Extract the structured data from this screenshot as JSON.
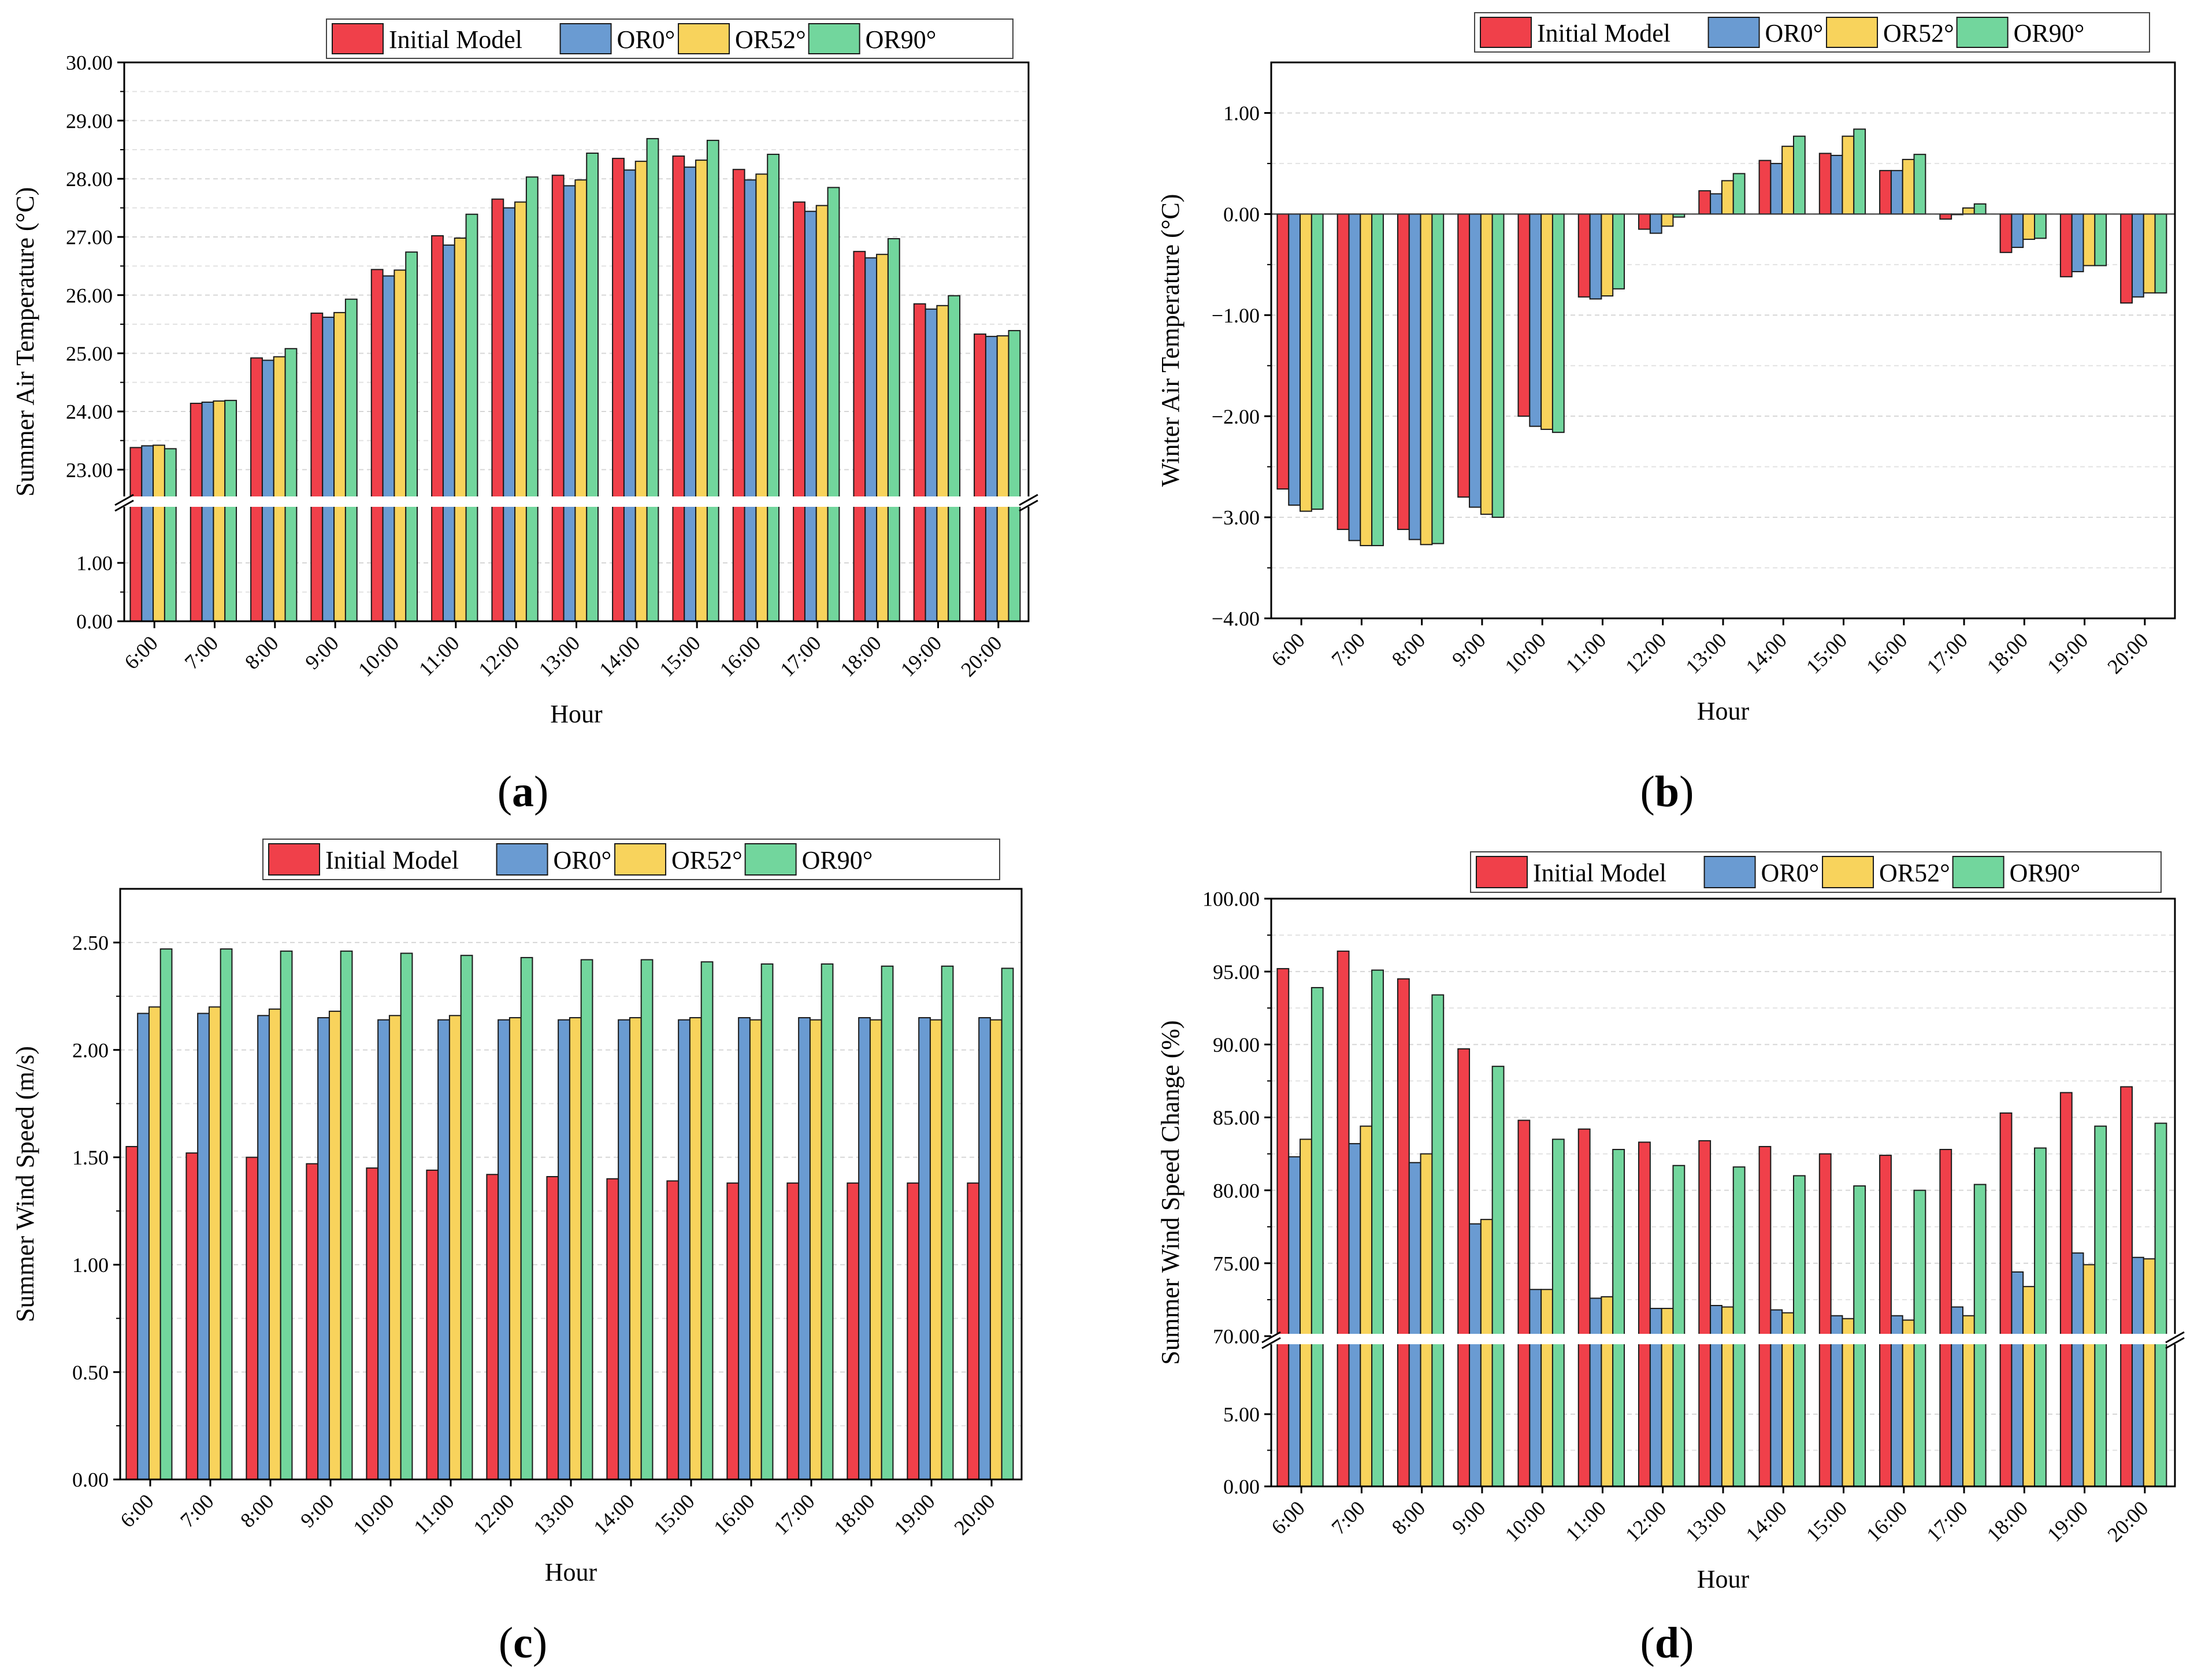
{
  "figure": {
    "panel_labels": [
      {
        "letter": "a",
        "open": "(",
        "close": ")"
      },
      {
        "letter": "b",
        "open": "(",
        "close": ")"
      },
      {
        "letter": "c",
        "open": "(",
        "close": ")"
      },
      {
        "letter": "d",
        "open": "(",
        "close": ")"
      }
    ]
  },
  "colors": {
    "initial": "#F0404A",
    "or0": "#6A9BD2",
    "or52": "#F8D35C",
    "or90": "#72D69D"
  },
  "chart_data": [
    {
      "id": "a",
      "type": "bar",
      "ylabel": "Summer Air Temperature (°C)",
      "xlabel": "Hour",
      "categories": [
        "6:00",
        "7:00",
        "8:00",
        "9:00",
        "10:00",
        "11:00",
        "12:00",
        "13:00",
        "14:00",
        "15:00",
        "16:00",
        "17:00",
        "18:00",
        "19:00",
        "20:00"
      ],
      "legend": [
        "Initial Model",
        "OR0°",
        "OR52°",
        "OR90°"
      ],
      "legend_position": "top",
      "axis_break": {
        "lower": [
          0,
          2
        ],
        "upper": [
          22.5,
          30
        ]
      },
      "lower_ticks": [
        "0.00",
        "1.00"
      ],
      "upper_ticks": [
        "23.00",
        "24.00",
        "25.00",
        "26.00",
        "27.00",
        "28.00",
        "29.00",
        "30.00"
      ],
      "series": [
        {
          "name": "Initial Model",
          "values": [
            23.38,
            24.14,
            24.92,
            25.69,
            26.44,
            27.02,
            27.65,
            28.06,
            28.35,
            28.39,
            28.16,
            27.6,
            26.75,
            25.85,
            25.33
          ]
        },
        {
          "name": "OR0°",
          "values": [
            23.41,
            24.16,
            24.88,
            25.62,
            26.33,
            26.86,
            27.5,
            27.88,
            28.15,
            28.2,
            27.98,
            27.44,
            26.64,
            25.76,
            25.29
          ]
        },
        {
          "name": "OR52°",
          "values": [
            23.42,
            24.18,
            24.94,
            25.7,
            26.43,
            26.98,
            27.6,
            27.98,
            28.3,
            28.32,
            28.08,
            27.54,
            26.7,
            25.82,
            25.3
          ]
        },
        {
          "name": "OR90°",
          "values": [
            23.36,
            24.19,
            25.08,
            25.93,
            26.74,
            27.39,
            28.03,
            28.44,
            28.69,
            28.66,
            28.42,
            27.85,
            26.97,
            25.99,
            25.39
          ]
        }
      ]
    },
    {
      "id": "b",
      "type": "bar",
      "ylabel": "Winter Air Temperature (°C)",
      "xlabel": "Hour",
      "categories": [
        "6:00",
        "7:00",
        "8:00",
        "9:00",
        "10:00",
        "11:00",
        "12:00",
        "13:00",
        "14:00",
        "15:00",
        "16:00",
        "17:00",
        "18:00",
        "19:00",
        "20:00"
      ],
      "legend": [
        "Initial Model",
        "OR0°",
        "OR52°",
        "OR90°"
      ],
      "legend_position": "top",
      "ylim": [
        -4,
        1.5
      ],
      "ticks": [
        "−4.00",
        "−3.00",
        "−2.00",
        "−1.00",
        "0.00",
        "1.00"
      ],
      "series": [
        {
          "name": "Initial Model",
          "values": [
            -2.72,
            -3.12,
            -3.12,
            -2.8,
            -2.0,
            -0.82,
            -0.15,
            0.23,
            0.53,
            0.6,
            0.43,
            -0.05,
            -0.38,
            -0.62,
            -0.88
          ]
        },
        {
          "name": "OR0°",
          "values": [
            -2.88,
            -3.23,
            -3.22,
            -2.9,
            -2.1,
            -0.84,
            -0.19,
            0.2,
            0.5,
            0.58,
            0.43,
            0.0,
            -0.33,
            -0.57,
            -0.82
          ]
        },
        {
          "name": "OR52°",
          "values": [
            -2.94,
            -3.28,
            -3.27,
            -2.97,
            -2.13,
            -0.81,
            -0.12,
            0.33,
            0.67,
            0.77,
            0.54,
            0.06,
            -0.25,
            -0.51,
            -0.78
          ]
        },
        {
          "name": "OR90°",
          "values": [
            -2.92,
            -3.28,
            -3.26,
            -3.0,
            -2.16,
            -0.74,
            -0.03,
            0.4,
            0.77,
            0.84,
            0.59,
            0.1,
            -0.24,
            -0.51,
            -0.78
          ]
        }
      ]
    },
    {
      "id": "c",
      "type": "bar",
      "ylabel": "Summer Wind Speed (m/s)",
      "xlabel": "Hour",
      "categories": [
        "6:00",
        "7:00",
        "8:00",
        "9:00",
        "10:00",
        "11:00",
        "12:00",
        "13:00",
        "14:00",
        "15:00",
        "16:00",
        "17:00",
        "18:00",
        "19:00",
        "20:00"
      ],
      "legend": [
        "Initial Model",
        "OR0°",
        "OR52°",
        "OR90°"
      ],
      "legend_position": "top",
      "ylim": [
        0,
        2.75
      ],
      "ticks": [
        "0.00",
        "0.50",
        "1.00",
        "1.50",
        "2.00",
        "2.50"
      ],
      "series": [
        {
          "name": "Initial Model",
          "values": [
            1.55,
            1.52,
            1.5,
            1.47,
            1.45,
            1.44,
            1.42,
            1.41,
            1.4,
            1.39,
            1.38,
            1.38,
            1.38,
            1.38,
            1.38
          ]
        },
        {
          "name": "OR0°",
          "values": [
            2.17,
            2.17,
            2.16,
            2.15,
            2.14,
            2.14,
            2.14,
            2.14,
            2.14,
            2.14,
            2.15,
            2.15,
            2.15,
            2.15,
            2.15
          ]
        },
        {
          "name": "OR52°",
          "values": [
            2.2,
            2.2,
            2.19,
            2.18,
            2.16,
            2.16,
            2.15,
            2.15,
            2.15,
            2.15,
            2.14,
            2.14,
            2.14,
            2.14,
            2.14
          ]
        },
        {
          "name": "OR90°",
          "values": [
            2.47,
            2.47,
            2.46,
            2.46,
            2.45,
            2.44,
            2.43,
            2.42,
            2.42,
            2.41,
            2.4,
            2.4,
            2.39,
            2.39,
            2.38
          ]
        }
      ]
    },
    {
      "id": "d",
      "type": "bar",
      "ylabel": "Summer Wind Speed Change (%)",
      "xlabel": "Hour",
      "categories": [
        "6:00",
        "7:00",
        "8:00",
        "9:00",
        "10:00",
        "11:00",
        "12:00",
        "13:00",
        "14:00",
        "15:00",
        "16:00",
        "17:00",
        "18:00",
        "19:00",
        "20:00"
      ],
      "legend": [
        "Initial Model",
        "OR0°",
        "OR52°",
        "OR90°"
      ],
      "legend_position": "top",
      "axis_break": {
        "lower": [
          0,
          10
        ],
        "upper": [
          70,
          100
        ]
      },
      "lower_ticks": [
        "0.00",
        "5.00"
      ],
      "upper_ticks": [
        "70.00",
        "75.00",
        "80.00",
        "85.00",
        "90.00",
        "95.00",
        "100.00"
      ],
      "series": [
        {
          "name": "Initial Model",
          "values": [
            95.2,
            96.4,
            94.5,
            89.7,
            84.8,
            84.2,
            83.3,
            83.4,
            83.0,
            82.5,
            82.4,
            82.8,
            85.3,
            86.7,
            87.1
          ]
        },
        {
          "name": "OR0°",
          "values": [
            82.3,
            83.2,
            81.9,
            77.7,
            73.2,
            72.6,
            71.9,
            72.1,
            71.8,
            71.4,
            71.4,
            72.0,
            74.4,
            75.7,
            75.4
          ]
        },
        {
          "name": "OR52°",
          "values": [
            83.5,
            84.4,
            82.5,
            78.0,
            73.2,
            72.7,
            71.9,
            72.0,
            71.6,
            71.2,
            71.1,
            71.4,
            73.4,
            74.9,
            75.3
          ]
        },
        {
          "name": "OR90°",
          "values": [
            93.9,
            95.1,
            93.4,
            88.5,
            83.5,
            82.8,
            81.7,
            81.6,
            81.0,
            80.3,
            80.0,
            80.4,
            82.9,
            84.4,
            84.6
          ]
        }
      ]
    }
  ]
}
